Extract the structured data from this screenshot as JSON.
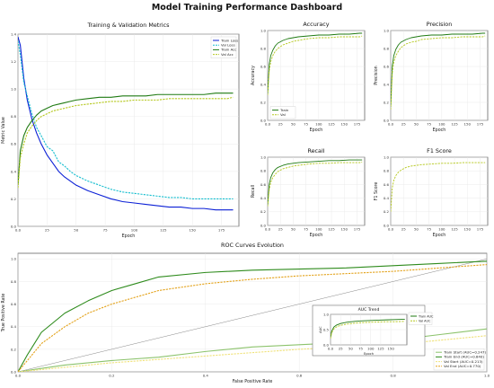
{
  "title": "Model Training Performance Dashboard",
  "colors": {
    "train_loss": "#0a1fd6",
    "val_loss": "#17becf",
    "train_acc": "#1f7a12",
    "val_acc": "#b5c81e",
    "roc_start_train": "#8cc36c",
    "roc_start_val": "#f0e27a",
    "roc_end_train": "#2e8b1c",
    "roc_end_val": "#e3a21a",
    "diagonal": "#888888"
  },
  "chart_data": [
    {
      "id": "metrics",
      "type": "line",
      "title": "Training & Validation Metrics",
      "xlabel": "Epoch",
      "ylabel": "Metric Value",
      "xlim": [
        0,
        190
      ],
      "ylim": [
        0,
        1.4
      ],
      "xticks": [
        0,
        25,
        50,
        75,
        100,
        125,
        150,
        175
      ],
      "yticks": [
        0.0,
        0.2,
        0.4,
        0.6,
        0.8,
        1.0,
        1.2,
        1.4
      ],
      "grid": true,
      "legend": "top-right",
      "series": [
        {
          "name": "Train Loss",
          "style": "solid",
          "color_key": "train_loss",
          "x": [
            0,
            2,
            5,
            8,
            12,
            16,
            20,
            25,
            30,
            35,
            40,
            45,
            50,
            60,
            70,
            80,
            90,
            100,
            110,
            120,
            130,
            140,
            150,
            160,
            170,
            180,
            185
          ],
          "y": [
            1.38,
            1.32,
            1.08,
            0.92,
            0.78,
            0.68,
            0.6,
            0.52,
            0.46,
            0.4,
            0.36,
            0.33,
            0.3,
            0.26,
            0.23,
            0.2,
            0.18,
            0.17,
            0.16,
            0.15,
            0.14,
            0.14,
            0.13,
            0.13,
            0.12,
            0.12,
            0.12
          ]
        },
        {
          "name": "Val Loss",
          "style": "dashed",
          "color_key": "val_loss",
          "x": [
            0,
            2,
            5,
            8,
            12,
            16,
            20,
            25,
            30,
            35,
            40,
            45,
            50,
            60,
            70,
            80,
            90,
            100,
            110,
            120,
            130,
            140,
            150,
            160,
            170,
            180,
            185
          ],
          "y": [
            1.35,
            1.25,
            1.05,
            0.95,
            0.82,
            0.72,
            0.66,
            0.58,
            0.55,
            0.47,
            0.44,
            0.4,
            0.37,
            0.33,
            0.3,
            0.27,
            0.25,
            0.24,
            0.23,
            0.22,
            0.21,
            0.21,
            0.2,
            0.2,
            0.2,
            0.2,
            0.2
          ]
        },
        {
          "name": "Train Acc",
          "style": "solid",
          "color_key": "train_acc",
          "x": [
            0,
            2,
            5,
            8,
            12,
            16,
            20,
            25,
            30,
            35,
            40,
            45,
            50,
            60,
            70,
            80,
            90,
            100,
            110,
            120,
            130,
            140,
            150,
            160,
            170,
            180,
            185
          ],
          "y": [
            0.3,
            0.55,
            0.66,
            0.72,
            0.77,
            0.81,
            0.84,
            0.86,
            0.88,
            0.89,
            0.9,
            0.91,
            0.92,
            0.93,
            0.94,
            0.94,
            0.95,
            0.95,
            0.95,
            0.96,
            0.96,
            0.96,
            0.96,
            0.96,
            0.97,
            0.97,
            0.97
          ]
        },
        {
          "name": "Val Acc",
          "style": "dashed",
          "color_key": "val_acc",
          "x": [
            0,
            2,
            5,
            8,
            12,
            16,
            20,
            25,
            30,
            35,
            40,
            45,
            50,
            60,
            70,
            80,
            90,
            100,
            110,
            120,
            130,
            140,
            150,
            160,
            170,
            180,
            185
          ],
          "y": [
            0.28,
            0.5,
            0.6,
            0.68,
            0.73,
            0.77,
            0.8,
            0.82,
            0.84,
            0.85,
            0.86,
            0.87,
            0.88,
            0.89,
            0.9,
            0.91,
            0.91,
            0.92,
            0.92,
            0.92,
            0.93,
            0.93,
            0.93,
            0.93,
            0.93,
            0.93,
            0.94
          ]
        }
      ]
    },
    {
      "id": "accuracy",
      "type": "line",
      "title": "Accuracy",
      "xlabel": "Epoch",
      "ylabel": "Accuracy",
      "xlim": [
        0,
        190
      ],
      "ylim": [
        0,
        1.0
      ],
      "xticks": [
        0,
        25,
        50,
        75,
        100,
        125,
        150,
        175
      ],
      "yticks": [
        0.0,
        0.2,
        0.4,
        0.6,
        0.8,
        1.0
      ],
      "grid": true,
      "legend": "bottom-left",
      "series": [
        {
          "name": "Train",
          "style": "solid",
          "color_key": "train_acc",
          "x": [
            0,
            3,
            6,
            10,
            15,
            20,
            30,
            40,
            50,
            60,
            80,
            100,
            120,
            140,
            160,
            180,
            185
          ],
          "y": [
            0.3,
            0.62,
            0.72,
            0.78,
            0.83,
            0.86,
            0.89,
            0.91,
            0.92,
            0.93,
            0.94,
            0.95,
            0.95,
            0.96,
            0.96,
            0.97,
            0.97
          ]
        },
        {
          "name": "Val",
          "style": "dashed",
          "color_key": "val_acc",
          "x": [
            0,
            3,
            6,
            10,
            15,
            20,
            30,
            40,
            50,
            60,
            80,
            100,
            120,
            140,
            160,
            180,
            185
          ],
          "y": [
            0.28,
            0.55,
            0.65,
            0.72,
            0.77,
            0.8,
            0.84,
            0.86,
            0.88,
            0.89,
            0.91,
            0.92,
            0.92,
            0.93,
            0.93,
            0.93,
            0.94
          ]
        }
      ]
    },
    {
      "id": "precision",
      "type": "line",
      "title": "Precision",
      "xlabel": "Epoch",
      "ylabel": "Precision",
      "xlim": [
        0,
        190
      ],
      "ylim": [
        0,
        1.0
      ],
      "xticks": [
        0,
        25,
        50,
        75,
        100,
        125,
        150,
        175
      ],
      "yticks": [
        0.0,
        0.2,
        0.4,
        0.6,
        0.8,
        1.0
      ],
      "grid": true,
      "legend": "",
      "series": [
        {
          "name": "",
          "style": "solid",
          "color_key": "train_acc",
          "x": [
            0,
            3,
            6,
            10,
            15,
            20,
            30,
            40,
            50,
            60,
            80,
            100,
            120,
            140,
            160,
            180,
            185
          ],
          "y": [
            0.15,
            0.6,
            0.72,
            0.79,
            0.84,
            0.87,
            0.9,
            0.92,
            0.93,
            0.94,
            0.95,
            0.95,
            0.96,
            0.96,
            0.96,
            0.97,
            0.97
          ]
        },
        {
          "name": "",
          "style": "dashed",
          "color_key": "val_acc",
          "x": [
            0,
            3,
            6,
            10,
            15,
            20,
            30,
            40,
            50,
            60,
            80,
            100,
            120,
            140,
            160,
            180,
            185
          ],
          "y": [
            0.12,
            0.52,
            0.65,
            0.72,
            0.77,
            0.81,
            0.85,
            0.87,
            0.88,
            0.9,
            0.91,
            0.92,
            0.92,
            0.93,
            0.93,
            0.93,
            0.94
          ]
        }
      ]
    },
    {
      "id": "recall",
      "type": "line",
      "title": "Recall",
      "xlabel": "Epoch",
      "ylabel": "Recall",
      "xlim": [
        0,
        190
      ],
      "ylim": [
        0,
        1.0
      ],
      "xticks": [
        0,
        25,
        50,
        75,
        100,
        125,
        150,
        175
      ],
      "yticks": [
        0.0,
        0.2,
        0.4,
        0.6,
        0.8,
        1.0
      ],
      "grid": true,
      "legend": "",
      "series": [
        {
          "name": "",
          "style": "solid",
          "color_key": "train_acc",
          "x": [
            0,
            3,
            6,
            10,
            15,
            20,
            30,
            40,
            50,
            60,
            80,
            100,
            120,
            140,
            160,
            180,
            185
          ],
          "y": [
            0.3,
            0.6,
            0.7,
            0.77,
            0.82,
            0.85,
            0.88,
            0.9,
            0.91,
            0.92,
            0.93,
            0.94,
            0.95,
            0.95,
            0.96,
            0.96,
            0.96
          ]
        },
        {
          "name": "",
          "style": "dashed",
          "color_key": "val_acc",
          "x": [
            0,
            3,
            6,
            10,
            15,
            20,
            30,
            40,
            50,
            60,
            80,
            100,
            120,
            140,
            160,
            180,
            185
          ],
          "y": [
            0.28,
            0.52,
            0.63,
            0.7,
            0.75,
            0.79,
            0.83,
            0.85,
            0.87,
            0.88,
            0.9,
            0.91,
            0.91,
            0.92,
            0.92,
            0.92,
            0.93
          ]
        }
      ]
    },
    {
      "id": "f1",
      "type": "line",
      "title": "F1 Score",
      "xlabel": "Epoch",
      "ylabel": "F1 Score",
      "xlim": [
        0,
        190
      ],
      "ylim": [
        0,
        1.0
      ],
      "xticks": [
        0,
        25,
        50,
        75,
        100,
        125,
        150,
        175
      ],
      "yticks": [
        0.0,
        0.2,
        0.4,
        0.6,
        0.8,
        1.0
      ],
      "grid": true,
      "legend": "",
      "series": [
        {
          "name": "",
          "style": "dashed",
          "color_key": "val_acc",
          "x": [
            0,
            3,
            6,
            10,
            15,
            20,
            30,
            40,
            50,
            60,
            80,
            100,
            120,
            140,
            160,
            180,
            185
          ],
          "y": [
            0.2,
            0.55,
            0.66,
            0.73,
            0.78,
            0.81,
            0.85,
            0.87,
            0.88,
            0.89,
            0.9,
            0.91,
            0.91,
            0.92,
            0.92,
            0.92,
            0.92
          ]
        }
      ]
    },
    {
      "id": "roc",
      "type": "line",
      "title": "ROC Curves Evolution",
      "xlabel": "False Positive Rate",
      "ylabel": "True Positive Rate",
      "xlim": [
        0,
        1.0
      ],
      "ylim": [
        0,
        1.05
      ],
      "xticks": [
        0.0,
        0.2,
        0.4,
        0.6,
        0.8,
        1.0
      ],
      "yticks": [
        0.0,
        0.2,
        0.4,
        0.6,
        0.8,
        1.0
      ],
      "grid": true,
      "legend": "bottom-right",
      "series": [
        {
          "name": "Train Start (AUC=0.247)",
          "style": "solid",
          "color_key": "roc_start_train",
          "x": [
            0,
            0.05,
            0.1,
            0.2,
            0.3,
            0.4,
            0.5,
            0.6,
            0.7,
            0.8,
            0.9,
            1.0
          ],
          "y": [
            0,
            0.03,
            0.06,
            0.1,
            0.13,
            0.18,
            0.22,
            0.24,
            0.26,
            0.28,
            0.33,
            0.38
          ]
        },
        {
          "name": "Train End (AUC=0.840)",
          "style": "solid",
          "color_key": "roc_end_train",
          "x": [
            0,
            0.02,
            0.05,
            0.1,
            0.15,
            0.2,
            0.25,
            0.3,
            0.4,
            0.5,
            0.6,
            0.7,
            0.8,
            0.9,
            1.0
          ],
          "y": [
            0,
            0.15,
            0.35,
            0.52,
            0.63,
            0.72,
            0.78,
            0.84,
            0.88,
            0.9,
            0.91,
            0.92,
            0.94,
            0.96,
            0.98
          ]
        },
        {
          "name": "Val Start (AUC=0.213)",
          "style": "dashed",
          "color_key": "roc_start_val",
          "x": [
            0,
            0.05,
            0.1,
            0.2,
            0.3,
            0.4,
            0.5,
            0.6,
            0.7,
            0.8,
            0.9,
            1.0
          ],
          "y": [
            0,
            0.02,
            0.04,
            0.08,
            0.11,
            0.14,
            0.17,
            0.2,
            0.22,
            0.24,
            0.28,
            0.32
          ]
        },
        {
          "name": "Val End (AUC=0.770)",
          "style": "dashed",
          "color_key": "roc_end_val",
          "x": [
            0,
            0.02,
            0.05,
            0.1,
            0.15,
            0.2,
            0.25,
            0.3,
            0.4,
            0.5,
            0.6,
            0.7,
            0.8,
            0.9,
            1.0
          ],
          "y": [
            0,
            0.1,
            0.25,
            0.4,
            0.52,
            0.6,
            0.66,
            0.72,
            0.78,
            0.82,
            0.85,
            0.87,
            0.89,
            0.92,
            0.95
          ]
        }
      ]
    },
    {
      "id": "auc",
      "type": "line",
      "title": "AUC Trend",
      "xlabel": "Epoch",
      "ylabel": "AUC",
      "xlim": [
        0,
        190
      ],
      "ylim": [
        0,
        1.0
      ],
      "xticks": [
        0,
        25,
        50,
        75,
        100,
        125,
        150
      ],
      "yticks": [
        0.0,
        0.5,
        1.0
      ],
      "grid": true,
      "legend": "upper-right",
      "series": [
        {
          "name": "Train AUC",
          "style": "solid",
          "color_key": "train_acc",
          "x": [
            0,
            3,
            8,
            15,
            25,
            40,
            60,
            80,
            100,
            120,
            140,
            160,
            185
          ],
          "y": [
            0.25,
            0.45,
            0.58,
            0.65,
            0.7,
            0.74,
            0.77,
            0.79,
            0.8,
            0.81,
            0.82,
            0.83,
            0.84
          ]
        },
        {
          "name": "Val AUC",
          "style": "dashed",
          "color_key": "val_acc",
          "x": [
            0,
            3,
            8,
            15,
            25,
            40,
            60,
            80,
            100,
            120,
            140,
            160,
            185
          ],
          "y": [
            0.21,
            0.4,
            0.52,
            0.59,
            0.64,
            0.68,
            0.71,
            0.73,
            0.74,
            0.75,
            0.76,
            0.76,
            0.77
          ]
        }
      ]
    }
  ]
}
